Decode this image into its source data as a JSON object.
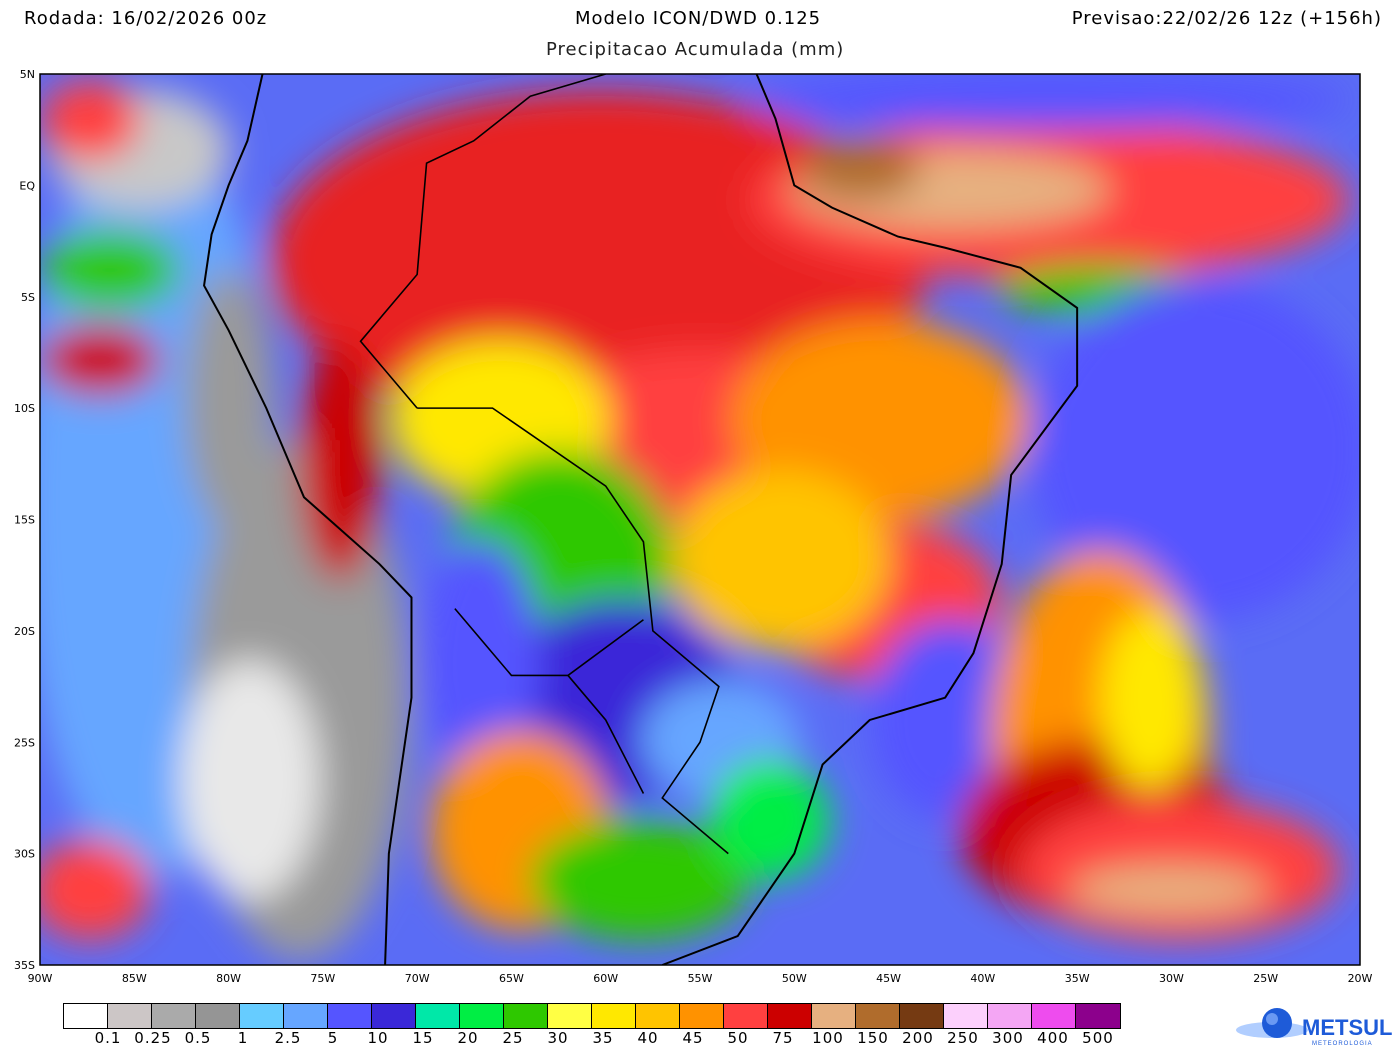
{
  "header": {
    "run": "Rodada: 16/02/2026 00z",
    "model": "Modelo ICON/DWD 0.125",
    "forecast": "Previsao:22/02/26 12z (+156h)",
    "subtitle": "Precipitacao Acumulada (mm)"
  },
  "map": {
    "lon_labels": [
      "90W",
      "85W",
      "80W",
      "75W",
      "70W",
      "65W",
      "60W",
      "55W",
      "50W",
      "45W",
      "40W",
      "35W",
      "30W",
      "25W",
      "20W"
    ],
    "lat_labels": [
      "5N",
      "EQ",
      "5S",
      "10S",
      "15S",
      "20S",
      "25S",
      "30S",
      "35S"
    ],
    "lon_range": [
      -90,
      -20
    ],
    "lat_range": [
      5,
      -35
    ]
  },
  "colorbar": {
    "colors": [
      "#ffffff",
      "#ccc6c6",
      "#aaaaaa",
      "#959595",
      "#66ccff",
      "#66a6ff",
      "#5555ff",
      "#3a28d8",
      "#00e8a8",
      "#00ee44",
      "#2ec800",
      "#ffff44",
      "#ffe800",
      "#ffc400",
      "#ff9200",
      "#ff4040",
      "#cc0000",
      "#e6b080",
      "#b06c2c",
      "#753a12",
      "#fcd0fc",
      "#f4a6f4",
      "#ee4cee",
      "#8c008c"
    ],
    "labels": [
      "0.1",
      "0.25",
      "0.5",
      "1",
      "2.5",
      "5",
      "10",
      "15",
      "20",
      "25",
      "30",
      "35",
      "40",
      "45",
      "50",
      "75",
      "100",
      "150",
      "200",
      "250",
      "300",
      "400",
      "500"
    ]
  },
  "logo": {
    "name": "METSUL",
    "sub": "METEOROLOGIA",
    "color": "#1e5bd8"
  }
}
